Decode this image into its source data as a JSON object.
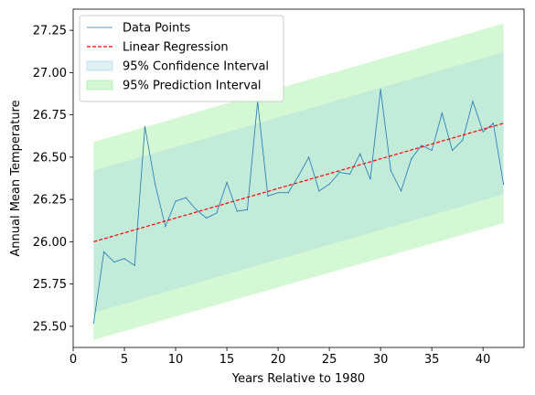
{
  "chart_data": {
    "type": "line",
    "xlabel": "Years Relative to 1980",
    "ylabel": "Annual Mean Temperature",
    "xlim": [
      0,
      44
    ],
    "ylim": [
      25.375,
      27.375
    ],
    "xticks": [
      "0",
      "5",
      "10",
      "15",
      "20",
      "25",
      "30",
      "35",
      "40"
    ],
    "yticks": [
      "25.50",
      "25.75",
      "26.00",
      "26.25",
      "26.50",
      "26.75",
      "27.00",
      "27.25"
    ],
    "grid": false,
    "legend_position": "upper-left",
    "legend": [
      "Data Points",
      "Linear Regression",
      "95% Confidence Interval",
      "95% Prediction Interval"
    ],
    "series": [
      {
        "name": "Data Points",
        "color": "#1f77b4",
        "x": [
          2,
          3,
          4,
          5,
          6,
          7,
          8,
          9,
          10,
          11,
          12,
          13,
          14,
          15,
          16,
          17,
          18,
          19,
          20,
          21,
          22,
          23,
          24,
          25,
          26,
          27,
          28,
          29,
          30,
          31,
          32,
          33,
          34,
          35,
          36,
          37,
          38,
          39,
          40,
          41,
          42
        ],
        "y": [
          25.52,
          25.94,
          25.88,
          25.9,
          25.86,
          26.68,
          26.34,
          26.09,
          26.24,
          26.26,
          26.19,
          26.14,
          26.17,
          26.35,
          26.18,
          26.19,
          26.83,
          26.27,
          26.29,
          26.29,
          26.39,
          26.5,
          26.3,
          26.34,
          26.41,
          26.4,
          26.52,
          26.37,
          26.9,
          26.42,
          26.3,
          26.49,
          26.57,
          26.54,
          26.76,
          26.54,
          26.6,
          26.83,
          26.65,
          26.7,
          26.34
        ]
      },
      {
        "name": "Linear Regression",
        "color": "#ff0000",
        "x": [
          2,
          42
        ],
        "y": [
          26.0,
          26.7
        ]
      }
    ],
    "bands": [
      {
        "name": "95% Prediction Interval",
        "color": "#90ee90",
        "opacity": 0.4,
        "x": [
          2,
          42
        ],
        "lower": [
          25.42,
          26.11
        ],
        "upper": [
          26.59,
          27.29
        ]
      },
      {
        "name": "95% Confidence Interval",
        "color": "#add8e6",
        "opacity": 0.4,
        "x": [
          2,
          42
        ],
        "lower": [
          25.58,
          26.28
        ],
        "upper": [
          26.42,
          27.12
        ]
      }
    ]
  }
}
